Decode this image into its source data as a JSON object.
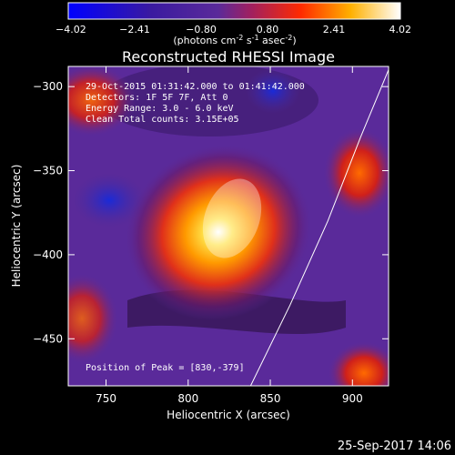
{
  "chart_data": {
    "type": "heatmap",
    "title": "Reconstructed RHESSI Image",
    "xlabel": "Heliocentric X (arcsec)",
    "ylabel": "Heliocentric Y (arcsec)",
    "xlim": [
      727,
      922
    ],
    "ylim": [
      -478,
      -288
    ],
    "x_ticks": [
      750,
      800,
      850,
      900
    ],
    "y_ticks": [
      -300,
      -350,
      -400,
      -450
    ],
    "colorbar": {
      "min": -4.02,
      "max": 4.02,
      "ticks": [
        "-4.02",
        "-2.41",
        "-0.80",
        "0.80",
        "2.41",
        "4.02"
      ],
      "unit_prefix": "(photons cm",
      "unit_sup1": "-2",
      "unit_mid": " s",
      "unit_sup2": "-1",
      "unit_mid2": " asec",
      "unit_sup3": "-2",
      "unit_suffix": ")"
    },
    "annotations": {
      "time": "29-Oct-2015 01:31:42.000 to 01:41:42.000",
      "detectors": "Detectors: 1F 5F 7F, Att 0",
      "energy": "Energy Range: 3.0 - 6.0 keV",
      "clean": "Clean    Total counts: 3.15E+05",
      "peak": "Position of Peak = [830,-379]"
    },
    "peak": [
      830,
      -379
    ],
    "limb_curve": [
      [
        838,
        -478
      ],
      [
        862,
        -430
      ],
      [
        885,
        -380
      ],
      [
        905,
        -330
      ],
      [
        922,
        -290
      ]
    ]
  },
  "footer": {
    "date": "25-Sep-2017 14:06"
  }
}
